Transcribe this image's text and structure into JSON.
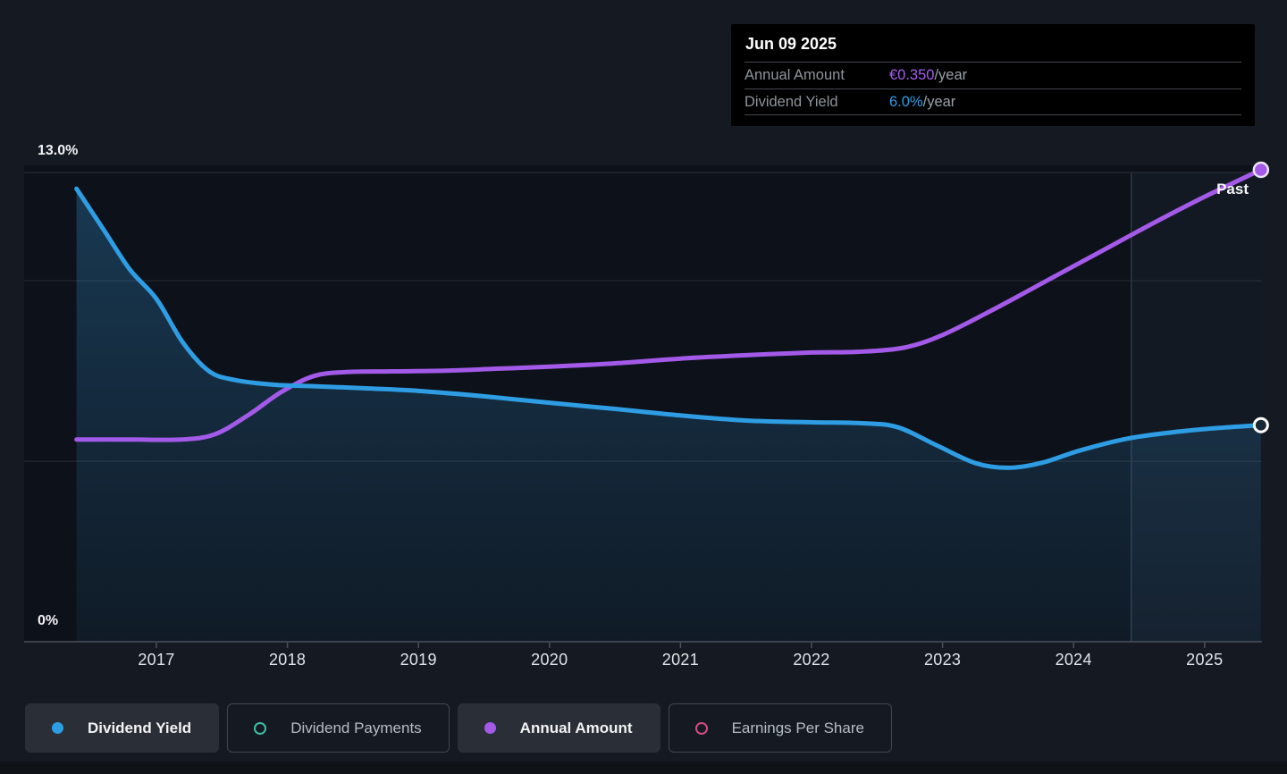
{
  "tooltip": {
    "date": "Jun 09 2025",
    "rows": [
      {
        "label": "Annual Amount",
        "value": "€0.350",
        "suffix": "/year",
        "color": "#a55cf0"
      },
      {
        "label": "Dividend Yield",
        "value": "6.0%",
        "suffix": "/year",
        "color": "#2b9fe8"
      }
    ]
  },
  "axis": {
    "y_top_label": "13.0%",
    "y_bottom_label": "0%"
  },
  "past_label": "Past",
  "legend": [
    {
      "label": "Dividend Yield",
      "color": "#2e9de3",
      "filled": true,
      "active": true
    },
    {
      "label": "Dividend Payments",
      "color": "#3fbfa5",
      "filled": false,
      "active": false
    },
    {
      "label": "Annual Amount",
      "color": "#a45ae8",
      "filled": true,
      "active": true
    },
    {
      "label": "Earnings Per Share",
      "color": "#d14b80",
      "filled": false,
      "active": false
    }
  ],
  "colors": {
    "page_bg": "#151a22",
    "plot_bg": "#0d1119",
    "gridline": "#2a3037",
    "axis_line": "#4a515a",
    "dividend_yield": "#2e9de3",
    "annual_amount": "#a45ae8",
    "area_fill_top": "rgba(47,137,197,0.33)",
    "area_fill_bottom": "rgba(47,137,197,0.08)",
    "past_overlay": "rgba(130,165,210,0.055)",
    "past_divider": "#2e3844"
  },
  "chart_data": {
    "type": "line",
    "x_axis": {
      "ticks": [
        2017,
        2018,
        2019,
        2020,
        2021,
        2022,
        2023,
        2024,
        2025
      ],
      "range": [
        2016.39,
        2025.43
      ]
    },
    "y_axis": {
      "unit": "%",
      "range": [
        0,
        13
      ],
      "tick_labels": [
        "13.0%",
        "0%"
      ],
      "gridlines_pct": [
        13,
        10,
        5
      ]
    },
    "annotations": {
      "past_label": "Past",
      "past_divider_year": 2024.44
    },
    "series": [
      {
        "name": "Dividend Yield",
        "unit": "%",
        "color": "#2e9de3",
        "visible": true,
        "area_fill": true,
        "end_marker": "hollow",
        "points": [
          [
            2016.39,
            12.55
          ],
          [
            2016.6,
            11.4
          ],
          [
            2016.8,
            10.3
          ],
          [
            2017.0,
            9.5
          ],
          [
            2017.2,
            8.3
          ],
          [
            2017.4,
            7.5
          ],
          [
            2017.6,
            7.25
          ],
          [
            2017.9,
            7.12
          ],
          [
            2018.2,
            7.08
          ],
          [
            2018.6,
            7.02
          ],
          [
            2019.0,
            6.95
          ],
          [
            2019.5,
            6.8
          ],
          [
            2020.0,
            6.62
          ],
          [
            2020.5,
            6.45
          ],
          [
            2021.0,
            6.27
          ],
          [
            2021.5,
            6.13
          ],
          [
            2022.0,
            6.08
          ],
          [
            2022.35,
            6.06
          ],
          [
            2022.65,
            5.95
          ],
          [
            2022.95,
            5.45
          ],
          [
            2023.25,
            4.95
          ],
          [
            2023.5,
            4.82
          ],
          [
            2023.75,
            4.95
          ],
          [
            2024.05,
            5.3
          ],
          [
            2024.4,
            5.62
          ],
          [
            2024.75,
            5.8
          ],
          [
            2025.1,
            5.92
          ],
          [
            2025.43,
            6.0
          ]
        ]
      },
      {
        "name": "Annual Amount",
        "unit": "EUR/year",
        "color": "#a45ae8",
        "visible": true,
        "area_fill": false,
        "end_marker": "filled",
        "points": [
          [
            2016.39,
            0.15
          ],
          [
            2016.8,
            0.15
          ],
          [
            2017.2,
            0.15
          ],
          [
            2017.45,
            0.154
          ],
          [
            2017.7,
            0.168
          ],
          [
            2017.95,
            0.185
          ],
          [
            2018.2,
            0.197
          ],
          [
            2018.45,
            0.2
          ],
          [
            2018.8,
            0.2005
          ],
          [
            2019.2,
            0.201
          ],
          [
            2019.6,
            0.2025
          ],
          [
            2020.0,
            0.204
          ],
          [
            2020.5,
            0.2065
          ],
          [
            2021.0,
            0.21
          ],
          [
            2021.5,
            0.2125
          ],
          [
            2022.0,
            0.2145
          ],
          [
            2022.35,
            0.215
          ],
          [
            2022.7,
            0.218
          ],
          [
            2023.0,
            0.2275
          ],
          [
            2023.4,
            0.247
          ],
          [
            2023.8,
            0.268
          ],
          [
            2024.2,
            0.289
          ],
          [
            2024.6,
            0.31
          ],
          [
            2025.0,
            0.33
          ],
          [
            2025.43,
            0.35
          ]
        ]
      },
      {
        "name": "Dividend Payments",
        "color": "#3fbfa5",
        "visible": false,
        "points": []
      },
      {
        "name": "Earnings Per Share",
        "color": "#d14b80",
        "visible": false,
        "points": []
      }
    ]
  }
}
